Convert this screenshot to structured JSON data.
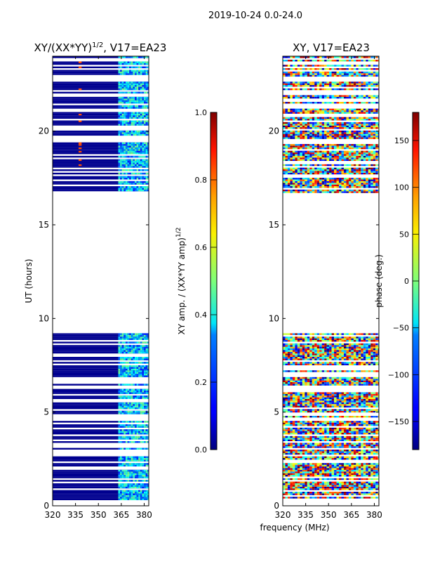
{
  "suptitle": "2019-10-24 0.0-24.0",
  "xlabel": "frequency (MHz)",
  "chart_data": [
    {
      "type": "heatmap",
      "title_main": "XY/(XX*YY)",
      "title_exp": "1/2",
      "title_tail": ", V17=EA23",
      "ylabel": "UT (hours)",
      "xlim": [
        320,
        383
      ],
      "ylim": [
        0,
        24
      ],
      "xticks": [
        320,
        335,
        350,
        365,
        380
      ],
      "yticks": [
        0,
        5,
        10,
        15,
        20
      ],
      "data_blocks_hours": [
        [
          0.3,
          9.2
        ],
        [
          16.7,
          23.9
        ]
      ],
      "colorbar": {
        "label_main": "XY amp. / (XX*YY amp)",
        "label_exp": "1/2",
        "range": [
          0.0,
          1.0
        ],
        "ticks": [
          0.0,
          0.2,
          0.4,
          0.6,
          0.8,
          1.0
        ],
        "tick_labels": [
          "0.0",
          "0.2",
          "0.4",
          "0.6",
          "0.8",
          "1.0"
        ]
      }
    },
    {
      "type": "heatmap",
      "title_main": "XY, V17=EA23",
      "ylabel": "",
      "xlim": [
        320,
        383
      ],
      "ylim": [
        0,
        24
      ],
      "xticks": [
        320,
        335,
        350,
        365,
        380
      ],
      "yticks": [
        0,
        5,
        10,
        15,
        20
      ],
      "data_blocks_hours": [
        [
          0.3,
          9.2
        ],
        [
          16.7,
          23.9
        ]
      ],
      "colorbar": {
        "label_main": "phase (deg.)",
        "range": [
          -180,
          180
        ],
        "ticks": [
          -150,
          -100,
          -50,
          0,
          50,
          100,
          150
        ],
        "tick_labels": [
          "−150",
          "−100",
          "−50",
          "0",
          "50",
          "100",
          "150"
        ]
      }
    }
  ]
}
